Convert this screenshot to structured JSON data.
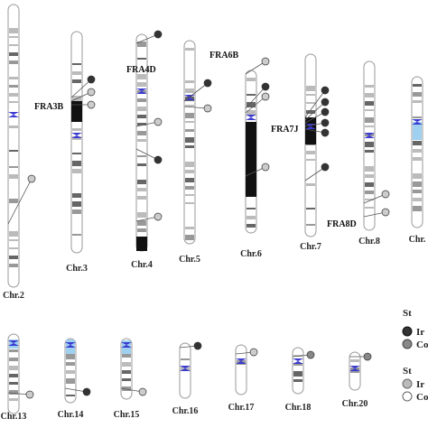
{
  "chromosomes": [
    {
      "label": "Chr.2"
    },
    {
      "label": "Chr.3"
    },
    {
      "label": "Chr.4"
    },
    {
      "label": "Chr.5"
    },
    {
      "label": "Chr.6"
    },
    {
      "label": "Chr.7"
    },
    {
      "label": "Chr.8"
    },
    {
      "label": "Chr."
    },
    {
      "label": "Chr.13"
    },
    {
      "label": "Chr.14"
    },
    {
      "label": "Chr.15"
    },
    {
      "label": "Chr.16"
    },
    {
      "label": "Chr.17"
    },
    {
      "label": "Chr.18"
    },
    {
      "label": "Chr.20"
    }
  ],
  "fragile_sites": [
    {
      "label": "FRA3B"
    },
    {
      "label": "FRA4D"
    },
    {
      "label": "FRA6B"
    },
    {
      "label": "FRA7J"
    },
    {
      "label": "FRA8D"
    }
  ],
  "legend": {
    "groups": [
      {
        "title": "St",
        "items": [
          "Ir",
          "Co"
        ]
      },
      {
        "title": "St",
        "items": [
          "Ir",
          "Co"
        ]
      }
    ]
  }
}
